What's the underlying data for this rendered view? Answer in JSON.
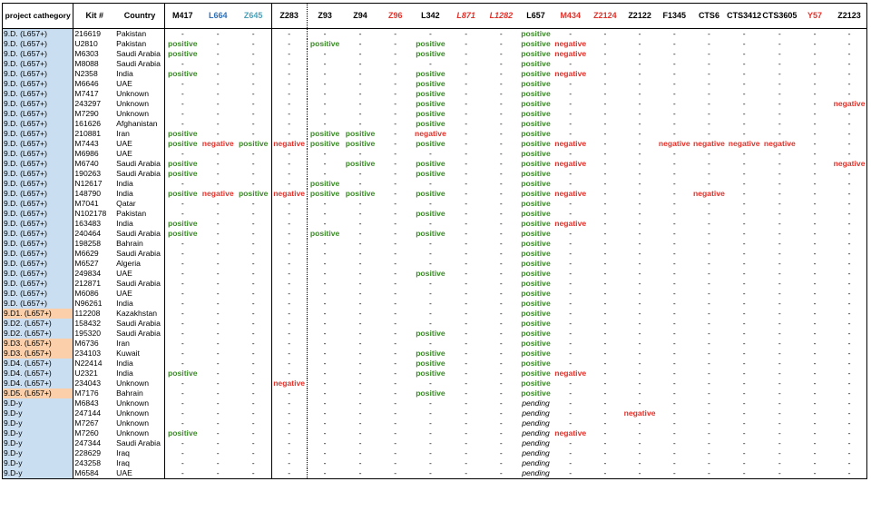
{
  "columns": [
    {
      "key": "category",
      "label": "project cathegory"
    },
    {
      "key": "kit",
      "label": "Kit #"
    },
    {
      "key": "country",
      "label": "Country"
    },
    {
      "key": "M417",
      "label": "M417"
    },
    {
      "key": "L664",
      "label": "L664",
      "color": "#2f6fb5"
    },
    {
      "key": "Z645",
      "label": "Z645",
      "color": "#4aa0b8"
    },
    {
      "key": "Z283",
      "label": "Z283"
    },
    {
      "key": "Z93",
      "label": "Z93"
    },
    {
      "key": "Z94",
      "label": "Z94"
    },
    {
      "key": "Z96",
      "label": "Z96",
      "color": "#e3312a"
    },
    {
      "key": "L342",
      "label": "L342"
    },
    {
      "key": "L871",
      "label": "L871",
      "color": "#e3312a",
      "italic": true
    },
    {
      "key": "L1282",
      "label": "L1282",
      "color": "#e3312a",
      "italic": true
    },
    {
      "key": "L657",
      "label": "L657"
    },
    {
      "key": "M434",
      "label": "M434",
      "color": "#e3312a"
    },
    {
      "key": "Z2124",
      "label": "Z2124",
      "color": "#e3312a"
    },
    {
      "key": "Z2122",
      "label": "Z2122"
    },
    {
      "key": "F1345",
      "label": "F1345"
    },
    {
      "key": "CTS6",
      "label": "CTS6"
    },
    {
      "key": "CTS3412",
      "label": "CTS3412"
    },
    {
      "key": "CTS3605",
      "label": "CTS3605"
    },
    {
      "key": "Y57",
      "label": "Y57",
      "color": "#e3312a"
    },
    {
      "key": "Z2123",
      "label": "Z2123"
    }
  ],
  "rows": [
    {
      "category": "9.D. (L657+)",
      "kit": "216619",
      "country": "Pakistan",
      "v": [
        "-",
        "-",
        "-",
        "-",
        "-",
        "-",
        "-",
        "-",
        "-",
        "-",
        "positive",
        "-",
        "-",
        "-",
        "-",
        "-",
        "-",
        "-",
        "-",
        "-"
      ]
    },
    {
      "category": "9.D. (L657+)",
      "kit": "U2810",
      "country": "Pakistan",
      "v": [
        "positive",
        "-",
        "-",
        "-",
        "positive",
        "-",
        "-",
        "positive",
        "-",
        "-",
        "positive",
        "negative",
        "-",
        "-",
        "-",
        "-",
        "-",
        "-",
        "-",
        "-"
      ]
    },
    {
      "category": "9.D. (L657+)",
      "kit": "M6303",
      "country": "Saudi Arabia",
      "v": [
        "positive",
        "-",
        "-",
        "-",
        "-",
        "-",
        "-",
        "positive",
        "-",
        "-",
        "positive",
        "negative",
        "-",
        "-",
        "-",
        "-",
        "-",
        "-",
        "-",
        "-"
      ]
    },
    {
      "category": "9.D. (L657+)",
      "kit": "M8088",
      "country": "Saudi Arabia",
      "v": [
        "-",
        "-",
        "-",
        "-",
        "-",
        "-",
        "-",
        "-",
        "-",
        "-",
        "positive",
        "-",
        "-",
        "-",
        "-",
        "-",
        "-",
        "-",
        "-",
        "-"
      ]
    },
    {
      "category": "9.D. (L657+)",
      "kit": "N2358",
      "country": "India",
      "v": [
        "positive",
        "-",
        "-",
        "-",
        "-",
        "-",
        "-",
        "positive",
        "-",
        "-",
        "positive",
        "negative",
        "-",
        "-",
        "-",
        "-",
        "-",
        "-",
        "-",
        "-"
      ]
    },
    {
      "category": "9.D. (L657+)",
      "kit": "M6646",
      "country": "UAE",
      "v": [
        "-",
        "-",
        "-",
        "-",
        "-",
        "-",
        "-",
        "positive",
        "-",
        "-",
        "positive",
        "-",
        "-",
        "-",
        "-",
        "-",
        "-",
        "-",
        "-",
        "-"
      ]
    },
    {
      "category": "9.D. (L657+)",
      "kit": "M7417",
      "country": "Unknown",
      "v": [
        "-",
        "-",
        "-",
        "-",
        "-",
        "-",
        "-",
        "positive",
        "-",
        "-",
        "positive",
        "-",
        "-",
        "-",
        "-",
        "-",
        "-",
        "-",
        "-",
        "-"
      ]
    },
    {
      "category": "9.D. (L657+)",
      "kit": "243297",
      "country": "Unknown",
      "v": [
        "-",
        "-",
        "-",
        "-",
        "-",
        "-",
        "-",
        "positive",
        "-",
        "-",
        "positive",
        "-",
        "-",
        "-",
        "-",
        "-",
        "-",
        "-",
        "-",
        "negative"
      ]
    },
    {
      "category": "9.D. (L657+)",
      "kit": "M7290",
      "country": "Unknown",
      "v": [
        "-",
        "-",
        "-",
        "-",
        "-",
        "-",
        "-",
        "positive",
        "-",
        "-",
        "positive",
        "-",
        "-",
        "-",
        "-",
        "-",
        "-",
        "-",
        "-",
        "-"
      ]
    },
    {
      "category": "9.D. (L657+)",
      "kit": "161626",
      "country": "Afghanistan",
      "v": [
        "-",
        "-",
        "-",
        "-",
        "-",
        "-",
        "-",
        "positive",
        "-",
        "-",
        "positive",
        "-",
        "-",
        "-",
        "-",
        "-",
        "-",
        "-",
        "-",
        "-"
      ]
    },
    {
      "category": "9.D. (L657+)",
      "kit": "210881",
      "country": "Iran",
      "v": [
        "positive",
        "-",
        "-",
        "-",
        "positive",
        "positive",
        "-",
        "negative",
        "-",
        "-",
        "positive",
        "-",
        "-",
        "-",
        "-",
        "-",
        "-",
        "-",
        "-",
        "-"
      ]
    },
    {
      "category": "9.D. (L657+)",
      "kit": "M7443",
      "country": "UAE",
      "v": [
        "positive",
        "negative",
        "positive",
        "negative",
        "positive",
        "positive",
        "-",
        "positive",
        "-",
        "-",
        "positive",
        "negative",
        "-",
        "-",
        "negative",
        "negative",
        "negative",
        "negative",
        "-",
        "-"
      ]
    },
    {
      "category": "9.D. (L657+)",
      "kit": "M6986",
      "country": "UAE",
      "v": [
        "-",
        "-",
        "-",
        "-",
        "-",
        "-",
        "-",
        "-",
        "-",
        "-",
        "positive",
        "-",
        "-",
        "-",
        "-",
        "-",
        "-",
        "-",
        "-",
        "-"
      ]
    },
    {
      "category": "9.D. (L657+)",
      "kit": "M6740",
      "country": "Saudi Arabia",
      "v": [
        "positive",
        "-",
        "-",
        "-",
        "-",
        "positive",
        "-",
        "positive",
        "-",
        "-",
        "positive",
        "negative",
        "-",
        "-",
        "-",
        "-",
        "-",
        "-",
        "-",
        "negative"
      ]
    },
    {
      "category": "9.D. (L657+)",
      "kit": "190263",
      "country": "Saudi Arabia",
      "v": [
        "positive",
        "-",
        "-",
        "-",
        "-",
        "-",
        "-",
        "positive",
        "-",
        "-",
        "positive",
        "-",
        "-",
        "-",
        "-",
        "-",
        "-",
        "-",
        "-",
        "-"
      ]
    },
    {
      "category": "9.D. (L657+)",
      "kit": "N12617",
      "country": "India",
      "v": [
        "-",
        "-",
        "-",
        "-",
        "positive",
        "-",
        "-",
        "-",
        "-",
        "-",
        "positive",
        "-",
        "-",
        "-",
        "-",
        "-",
        "-",
        "-",
        "-",
        "-"
      ]
    },
    {
      "category": "9.D. (L657+)",
      "kit": "148790",
      "country": "India",
      "v": [
        "positive",
        "negative",
        "positive",
        "negative",
        "positive",
        "positive",
        "-",
        "positive",
        "-",
        "-",
        "positive",
        "negative",
        "-",
        "-",
        "-",
        "negative",
        "-",
        "-",
        "-",
        "-"
      ]
    },
    {
      "category": "9.D. (L657+)",
      "kit": "M7041",
      "country": "Qatar",
      "v": [
        "-",
        "-",
        "-",
        "-",
        "-",
        "-",
        "-",
        "-",
        "-",
        "-",
        "positive",
        "-",
        "-",
        "-",
        "-",
        "-",
        "-",
        "-",
        "-",
        "-"
      ]
    },
    {
      "category": "9.D. (L657+)",
      "kit": "N102178",
      "country": "Pakistan",
      "v": [
        "-",
        "-",
        "-",
        "-",
        "-",
        "-",
        "-",
        "positive",
        "-",
        "-",
        "positive",
        "-",
        "-",
        "-",
        "-",
        "-",
        "-",
        "-",
        "-",
        "-"
      ]
    },
    {
      "category": "9.D. (L657+)",
      "kit": "163483",
      "country": "India",
      "v": [
        "positive",
        "-",
        "-",
        "-",
        "-",
        "-",
        "-",
        "-",
        "-",
        "-",
        "positive",
        "negative",
        "-",
        "-",
        "-",
        "-",
        "-",
        "-",
        "-",
        "-"
      ]
    },
    {
      "category": "9.D. (L657+)",
      "kit": "240464",
      "country": "Saudi Arabia",
      "v": [
        "positive",
        "-",
        "-",
        "-",
        "positive",
        "-",
        "-",
        "positive",
        "-",
        "-",
        "positive",
        "-",
        "-",
        "-",
        "-",
        "-",
        "-",
        "-",
        "-",
        "-"
      ]
    },
    {
      "category": "9.D. (L657+)",
      "kit": "198258",
      "country": "Bahrain",
      "v": [
        "-",
        "-",
        "-",
        "-",
        "-",
        "-",
        "-",
        "-",
        "-",
        "-",
        "positive",
        "-",
        "-",
        "-",
        "-",
        "-",
        "-",
        "-",
        "-",
        "-"
      ]
    },
    {
      "category": "9.D. (L657+)",
      "kit": "M6629",
      "country": "Saudi Arabia",
      "v": [
        "-",
        "-",
        "-",
        "-",
        "-",
        "-",
        "-",
        "-",
        "-",
        "-",
        "positive",
        "-",
        "-",
        "-",
        "-",
        "-",
        "-",
        "-",
        "-",
        "-"
      ]
    },
    {
      "category": "9.D. (L657+)",
      "kit": "M6527",
      "country": "Algeria",
      "v": [
        "-",
        "-",
        "-",
        "-",
        "-",
        "-",
        "-",
        "-",
        "-",
        "-",
        "positive",
        "-",
        "-",
        "-",
        "-",
        "-",
        "-",
        "-",
        "-",
        "-"
      ]
    },
    {
      "category": "9.D. (L657+)",
      "kit": "249834",
      "country": "UAE",
      "v": [
        "-",
        "-",
        "-",
        "-",
        "-",
        "-",
        "-",
        "positive",
        "-",
        "-",
        "positive",
        "-",
        "-",
        "-",
        "-",
        "-",
        "-",
        "-",
        "-",
        "-"
      ]
    },
    {
      "category": "9.D. (L657+)",
      "kit": "212871",
      "country": "Saudi Arabia",
      "v": [
        "-",
        "-",
        "-",
        "-",
        "-",
        "-",
        "-",
        "-",
        "-",
        "-",
        "positive",
        "-",
        "-",
        "-",
        "-",
        "-",
        "-",
        "-",
        "-",
        "-"
      ]
    },
    {
      "category": "9.D. (L657+)",
      "kit": "M6086",
      "country": "UAE",
      "v": [
        "-",
        "-",
        "-",
        "-",
        "-",
        "-",
        "-",
        "-",
        "-",
        "-",
        "positive",
        "-",
        "-",
        "-",
        "-",
        "-",
        "-",
        "-",
        "-",
        "-"
      ]
    },
    {
      "category": "9.D. (L657+)",
      "kit": "N96261",
      "country": "India",
      "v": [
        "-",
        "-",
        "-",
        "-",
        "-",
        "-",
        "-",
        "-",
        "-",
        "-",
        "positive",
        "-",
        "-",
        "-",
        "-",
        "-",
        "-",
        "-",
        "-",
        "-"
      ]
    },
    {
      "category": "9.D1. (L657+)",
      "sub": true,
      "kit": "112208",
      "country": "Kazakhstan",
      "v": [
        "-",
        "-",
        "-",
        "-",
        "-",
        "-",
        "-",
        "-",
        "-",
        "-",
        "positive",
        "-",
        "-",
        "-",
        "-",
        "-",
        "-",
        "-",
        "-",
        "-"
      ]
    },
    {
      "category": "9.D2. (L657+)",
      "kit": "158432",
      "country": "Saudi Arabia",
      "v": [
        "-",
        "-",
        "-",
        "-",
        "-",
        "-",
        "-",
        "-",
        "-",
        "-",
        "positive",
        "-",
        "-",
        "-",
        "-",
        "-",
        "-",
        "-",
        "-",
        "-"
      ]
    },
    {
      "category": "9.D2. (L657+)",
      "kit": "195320",
      "country": "Saudi Arabia",
      "v": [
        "-",
        "-",
        "-",
        "-",
        "-",
        "-",
        "-",
        "positive",
        "-",
        "-",
        "positive",
        "-",
        "-",
        "-",
        "-",
        "-",
        "-",
        "-",
        "-",
        "-"
      ]
    },
    {
      "category": "9.D3. (L657+)",
      "sub": true,
      "kit": "M6736",
      "country": "Iran",
      "v": [
        "-",
        "-",
        "-",
        "-",
        "-",
        "-",
        "-",
        "-",
        "-",
        "-",
        "positive",
        "-",
        "-",
        "-",
        "-",
        "-",
        "-",
        "-",
        "-",
        "-"
      ]
    },
    {
      "category": "9.D3. (L657+)",
      "sub": true,
      "kit": "234103",
      "country": "Kuwait",
      "v": [
        "-",
        "-",
        "-",
        "-",
        "-",
        "-",
        "-",
        "positive",
        "-",
        "-",
        "positive",
        "-",
        "-",
        "-",
        "-",
        "-",
        "-",
        "-",
        "-",
        "-"
      ]
    },
    {
      "category": "9.D4. (L657+)",
      "kit": "N22414",
      "country": "India",
      "v": [
        "-",
        "-",
        "-",
        "-",
        "-",
        "-",
        "-",
        "positive",
        "-",
        "-",
        "positive",
        "-",
        "-",
        "-",
        "-",
        "-",
        "-",
        "-",
        "-",
        "-"
      ]
    },
    {
      "category": "9.D4. (L657+)",
      "kit": "U2321",
      "country": "India",
      "v": [
        "positive",
        "-",
        "-",
        "-",
        "-",
        "-",
        "-",
        "positive",
        "-",
        "-",
        "positive",
        "negative",
        "-",
        "-",
        "-",
        "-",
        "-",
        "-",
        "-",
        "-"
      ]
    },
    {
      "category": "9.D4. (L657+)",
      "kit": "234043",
      "country": "Unknown",
      "v": [
        "-",
        "-",
        "-",
        "negative",
        "-",
        "-",
        "-",
        "-",
        "-",
        "-",
        "positive",
        "-",
        "-",
        "-",
        "-",
        "-",
        "-",
        "-",
        "-",
        "-"
      ]
    },
    {
      "category": "9.D5. (L657+)",
      "sub": true,
      "kit": "M7176",
      "country": "Bahrain",
      "v": [
        "-",
        "-",
        "-",
        "-",
        "-",
        "-",
        "-",
        "positive",
        "-",
        "-",
        "positive",
        "-",
        "-",
        "-",
        "-",
        "-",
        "-",
        "-",
        "-",
        "-"
      ]
    },
    {
      "category": "9.D-y",
      "kit": "M6843",
      "country": "Unknown",
      "v": [
        "-",
        "-",
        "-",
        "-",
        "-",
        "-",
        "-",
        "-",
        "-",
        "-",
        "pending",
        "-",
        "-",
        "-",
        "-",
        "-",
        "-",
        "-",
        "-",
        "-"
      ]
    },
    {
      "category": "9.D-y",
      "kit": "247144",
      "country": "Unknown",
      "v": [
        "-",
        "-",
        "-",
        "-",
        "-",
        "-",
        "-",
        "-",
        "-",
        "-",
        "pending",
        "-",
        "-",
        "negative",
        "-",
        "-",
        "-",
        "-",
        "-",
        "-"
      ]
    },
    {
      "category": "9.D-y",
      "kit": "M7267",
      "country": "Unknown",
      "v": [
        "-",
        "-",
        "-",
        "-",
        "-",
        "-",
        "-",
        "-",
        "-",
        "-",
        "pending",
        "-",
        "-",
        "-",
        "-",
        "-",
        "-",
        "-",
        "-",
        "-"
      ]
    },
    {
      "category": "9.D-y",
      "kit": "M7260",
      "country": "Unknown",
      "v": [
        "positive",
        "-",
        "-",
        "-",
        "-",
        "-",
        "-",
        "-",
        "-",
        "-",
        "pending",
        "negative",
        "-",
        "-",
        "-",
        "-",
        "-",
        "-",
        "-",
        "-"
      ]
    },
    {
      "category": "9.D-y",
      "kit": "247344",
      "country": "Saudi Arabia",
      "v": [
        "-",
        "-",
        "-",
        "-",
        "-",
        "-",
        "-",
        "-",
        "-",
        "-",
        "pending",
        "-",
        "-",
        "-",
        "-",
        "-",
        "-",
        "-",
        "-",
        "-"
      ]
    },
    {
      "category": "9.D-y",
      "kit": "228629",
      "country": "Iraq",
      "v": [
        "-",
        "-",
        "-",
        "-",
        "-",
        "-",
        "-",
        "-",
        "-",
        "-",
        "pending",
        "-",
        "-",
        "-",
        "-",
        "-",
        "-",
        "-",
        "-",
        "-"
      ]
    },
    {
      "category": "9.D-y",
      "kit": "243258",
      "country": "Iraq",
      "v": [
        "-",
        "-",
        "-",
        "-",
        "-",
        "-",
        "-",
        "-",
        "-",
        "-",
        "pending",
        "-",
        "-",
        "-",
        "-",
        "-",
        "-",
        "-",
        "-",
        "-"
      ]
    },
    {
      "category": "9.D-y",
      "kit": "M6584",
      "country": "UAE",
      "v": [
        "-",
        "-",
        "-",
        "-",
        "-",
        "-",
        "-",
        "-",
        "-",
        "-",
        "pending",
        "-",
        "-",
        "-",
        "-",
        "-",
        "-",
        "-",
        "-",
        "-"
      ]
    }
  ]
}
